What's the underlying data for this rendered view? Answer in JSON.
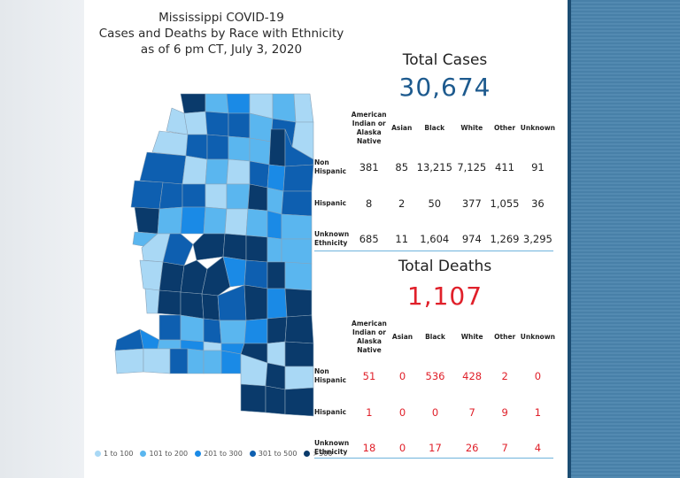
{
  "title": {
    "line1": "Mississippi COVID-19",
    "line2": "Cases and Deaths by Race with Ethnicity",
    "line3": "as of 6 pm CT, July 3, 2020"
  },
  "colors": {
    "bin1": "#a9d8f5",
    "bin2": "#5ab6ef",
    "bin3": "#1a8ae6",
    "bin4": "#0e5fb0",
    "bin5": "#0a3a6b",
    "cases": "#1d5a8e",
    "deaths": "#e0202a"
  },
  "legend": [
    {
      "label": "1 to 100",
      "color": "#a9d8f5"
    },
    {
      "label": "101 to 200",
      "color": "#5ab6ef"
    },
    {
      "label": "201 to 300",
      "color": "#1a8ae6"
    },
    {
      "label": "301 to 500",
      "color": "#0e5fb0"
    },
    {
      "label": ">500",
      "color": "#0a3a6b"
    }
  ],
  "cases": {
    "heading": "Total Cases",
    "total": "30,674",
    "columns": [
      "American Indian or Alaska Native",
      "Asian",
      "Black",
      "White",
      "Other",
      "Unknown"
    ],
    "rows": [
      {
        "label": "Non Hispanic",
        "values": [
          "381",
          "85",
          "13,215",
          "7,125",
          "411",
          "91"
        ]
      },
      {
        "label": "Hispanic",
        "values": [
          "8",
          "2",
          "50",
          "377",
          "1,055",
          "36"
        ]
      },
      {
        "label": "Unknown Ethnicity",
        "values": [
          "685",
          "11",
          "1,604",
          "974",
          "1,269",
          "3,295"
        ]
      }
    ]
  },
  "deaths": {
    "heading": "Total Deaths",
    "total": "1,107",
    "columns": [
      "American Indian or Alaska Native",
      "Asian",
      "Black",
      "White",
      "Other",
      "Unknown"
    ],
    "rows": [
      {
        "label": "Non Hispanic",
        "values": [
          "51",
          "0",
          "536",
          "428",
          "2",
          "0"
        ]
      },
      {
        "label": "Hispanic",
        "values": [
          "1",
          "0",
          "0",
          "7",
          "9",
          "1"
        ]
      },
      {
        "label": "Unknown Ethnicity",
        "values": [
          "18",
          "0",
          "17",
          "26",
          "7",
          "4"
        ]
      }
    ]
  }
}
